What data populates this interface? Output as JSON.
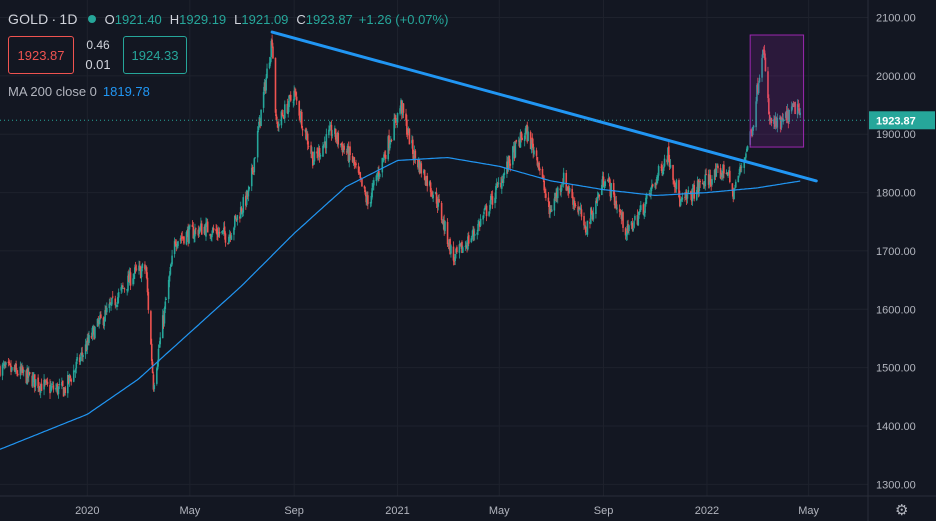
{
  "header": {
    "symbol": "GOLD",
    "interval": "1D",
    "open_label": "O",
    "open": "1921.40",
    "high_label": "H",
    "high": "1929.19",
    "low_label": "L",
    "low": "1921.09",
    "close_label": "C",
    "close": "1923.87",
    "change": "+1.26 (+0.07%)"
  },
  "trade": {
    "sell": "1923.87",
    "spread_top": "0.46",
    "spread_bottom": "0.01",
    "buy": "1924.33"
  },
  "indicator": {
    "label": "MA 200 close 0",
    "value": "1819.78"
  },
  "price_label": "1923.87",
  "colors": {
    "background": "#131722",
    "up": "#26a69a",
    "down": "#ef5350",
    "ma": "#2196f3",
    "trendline": "#2196f3",
    "highlight": "#9c27b0"
  },
  "icons": {
    "settings": "gear-icon",
    "market_status": "market-open-dot-icon"
  },
  "chart_data": {
    "type": "candlestick",
    "symbol": "GOLD",
    "interval": "1D",
    "y_ticks": [
      2100,
      2000,
      1900,
      1800,
      1700,
      1600,
      1500,
      1400,
      1300
    ],
    "y_tick_labels": [
      "2100.00",
      "2000.00",
      "1900.00",
      "1800.00",
      "1700.00",
      "1600.00",
      "1500.00",
      "1400.00",
      "1300.00"
    ],
    "ylim": [
      1280,
      2130
    ],
    "xlim": [
      "2019-09-20",
      "2022-07-10"
    ],
    "x_ticks": [
      {
        "date": "2020-01-01",
        "label": "2020"
      },
      {
        "date": "2020-05-01",
        "label": "May"
      },
      {
        "date": "2020-09-01",
        "label": "Sep"
      },
      {
        "date": "2021-01-01",
        "label": "2021"
      },
      {
        "date": "2021-05-01",
        "label": "May"
      },
      {
        "date": "2021-09-01",
        "label": "Sep"
      },
      {
        "date": "2022-01-01",
        "label": "2022"
      },
      {
        "date": "2022-05-01",
        "label": "May"
      }
    ],
    "price_anchors": [
      [
        "2019-09-20",
        1500
      ],
      [
        "2019-10-15",
        1490
      ],
      [
        "2019-11-15",
        1465
      ],
      [
        "2019-12-05",
        1462
      ],
      [
        "2020-01-08",
        1560
      ],
      [
        "2020-02-24",
        1660
      ],
      [
        "2020-03-10",
        1670
      ],
      [
        "2020-03-19",
        1472
      ],
      [
        "2020-04-14",
        1720
      ],
      [
        "2020-05-18",
        1740
      ],
      [
        "2020-06-15",
        1725
      ],
      [
        "2020-07-10",
        1800
      ],
      [
        "2020-08-06",
        2065
      ],
      [
        "2020-08-11",
        1912
      ],
      [
        "2020-09-01",
        1970
      ],
      [
        "2020-09-24",
        1855
      ],
      [
        "2020-10-15",
        1905
      ],
      [
        "2020-11-09",
        1855
      ],
      [
        "2020-11-27",
        1780
      ],
      [
        "2021-01-05",
        1950
      ],
      [
        "2021-01-20",
        1865
      ],
      [
        "2021-02-16",
        1790
      ],
      [
        "2021-03-08",
        1685
      ],
      [
        "2021-04-01",
        1730
      ],
      [
        "2021-04-20",
        1780
      ],
      [
        "2021-05-20",
        1875
      ],
      [
        "2021-06-01",
        1905
      ],
      [
        "2021-06-15",
        1860
      ],
      [
        "2021-06-29",
        1765
      ],
      [
        "2021-07-15",
        1825
      ],
      [
        "2021-08-06",
        1760
      ],
      [
        "2021-08-09",
        1730
      ],
      [
        "2021-08-25",
        1790
      ],
      [
        "2021-09-03",
        1830
      ],
      [
        "2021-09-29",
        1730
      ],
      [
        "2021-10-20",
        1780
      ],
      [
        "2021-11-16",
        1868
      ],
      [
        "2021-12-01",
        1780
      ],
      [
        "2021-12-30",
        1820
      ],
      [
        "2022-01-25",
        1840
      ],
      [
        "2022-01-31",
        1795
      ],
      [
        "2022-02-14",
        1860
      ],
      [
        "2022-02-24",
        1915
      ],
      [
        "2022-03-08",
        2055
      ],
      [
        "2022-03-16",
        1920
      ],
      [
        "2022-03-28",
        1915
      ],
      [
        "2022-04-18",
        1950
      ],
      [
        "2022-04-21",
        1923.87
      ]
    ],
    "ma200_anchors": [
      [
        "2019-09-20",
        1360
      ],
      [
        "2020-01-01",
        1420
      ],
      [
        "2020-03-01",
        1480
      ],
      [
        "2020-05-01",
        1560
      ],
      [
        "2020-07-01",
        1640
      ],
      [
        "2020-09-01",
        1730
      ],
      [
        "2020-11-01",
        1810
      ],
      [
        "2021-01-01",
        1855
      ],
      [
        "2021-03-01",
        1860
      ],
      [
        "2021-05-01",
        1845
      ],
      [
        "2021-07-01",
        1820
      ],
      [
        "2021-09-01",
        1805
      ],
      [
        "2021-11-01",
        1795
      ],
      [
        "2022-01-01",
        1800
      ],
      [
        "2022-03-01",
        1808
      ],
      [
        "2022-04-21",
        1819.78
      ]
    ],
    "trendline": {
      "start": [
        "2020-08-06",
        2075
      ],
      "end": [
        "2022-05-10",
        1820
      ]
    },
    "highlight_box": {
      "x_start": "2022-02-21",
      "x_end": "2022-04-25",
      "y_low": 1878,
      "y_high": 2070
    },
    "ma200_last": 1819.78,
    "last_price": 1923.87,
    "current_price_line": 1923.87
  }
}
